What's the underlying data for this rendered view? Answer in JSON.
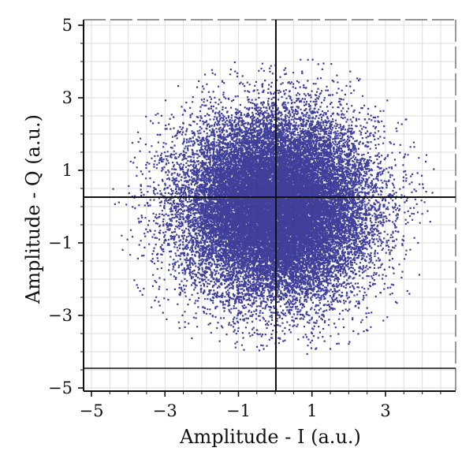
{
  "chart_data": {
    "type": "scatter",
    "title": "",
    "xlabel": "Amplitude - I (a.u.)",
    "ylabel": "Amplitude - Q (a.u.)",
    "xlim": [
      -5,
      5
    ],
    "ylim": [
      -5,
      5
    ],
    "xticks": [
      -5,
      -3,
      -1,
      1,
      3
    ],
    "yticks": [
      5,
      3,
      1,
      -1,
      -3,
      -5
    ],
    "xtick_labels": [
      "−5",
      "−3",
      "−1",
      "1",
      "3"
    ],
    "ytick_labels": [
      "5",
      "3",
      "1",
      "−1",
      "−3",
      "−5"
    ],
    "grid": true,
    "marker_color": "#1f1f8a",
    "series": [
      {
        "distribution": "gaussian-cloud",
        "center": [
          0.0,
          0.0
        ],
        "std": [
          1.25,
          1.25
        ],
        "clip_radius_x": 4.5,
        "clip_radius_y": 4.2,
        "point_count": 26000
      }
    ]
  },
  "colors": {
    "background": "#ffffff",
    "grid": "#d9d9d9",
    "frame": "#111111",
    "points": "#1f1f8a"
  }
}
